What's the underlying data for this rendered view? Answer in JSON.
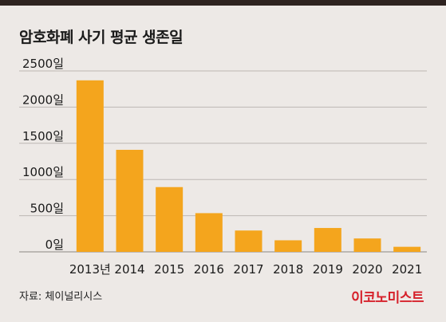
{
  "title": "암호화폐 사기 평균 생존일",
  "source": "자료: 체이널리시스",
  "brand": "이코노미스트",
  "colors": {
    "bar": "#f4a51d",
    "background": "#ede9e6",
    "grid": "#bdb7b3",
    "text": "#1a1a1a",
    "brand": "#d6202a"
  },
  "chart_data": {
    "type": "bar",
    "title": "암호화폐 사기 평균 생존일",
    "categories": [
      "2013년",
      "2014",
      "2015",
      "2016",
      "2017",
      "2018",
      "2019",
      "2020",
      "2021"
    ],
    "values": [
      2370,
      1410,
      895,
      535,
      295,
      160,
      330,
      185,
      70
    ],
    "yticks": [
      "0일",
      "500일",
      "1000일",
      "1500일",
      "2000일",
      "2500일"
    ],
    "ytick_values": [
      0,
      500,
      1000,
      1500,
      2000,
      2500
    ],
    "ylim": [
      0,
      2500
    ],
    "xlabel": "",
    "ylabel": "",
    "grid": true,
    "legend": "none"
  }
}
